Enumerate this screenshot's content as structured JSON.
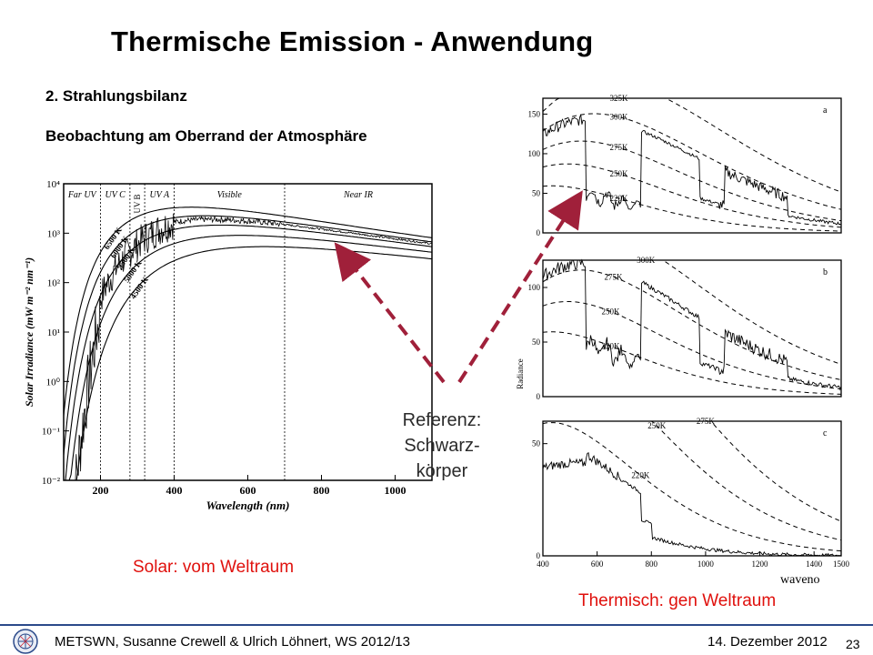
{
  "slide": {
    "title": "Thermische Emission - Anwendung",
    "section": "2. Strahlungsbilanz",
    "subtitle": "Beobachtung am Oberrand der Atmosphäre",
    "solar_caption": "Solar: vom Weltraum",
    "thermal_caption": "Thermisch: gen Weltraum",
    "reference_lines": [
      "Referenz:",
      "Schwarz-",
      "körper"
    ],
    "waveno_label": "waveno",
    "arrow_color": "#a0203a",
    "caption_color": "#e0110d"
  },
  "footer": {
    "text": "METSWN, Susanne Crewell & Ulrich Löhnert,  WS 2012/13",
    "date": "14. Dezember  2012",
    "page": "23"
  },
  "chart_data": [
    {
      "type": "line",
      "xlabel": "Wavelength (nm)",
      "ylabel": "Solar Irradiance (mW m⁻² nm⁻¹)",
      "xticks": [
        "200",
        "400",
        "600",
        "800",
        "1000"
      ],
      "yticks": [
        "10⁻²",
        "10⁻¹",
        "10⁰",
        "10¹",
        "10²",
        "10³",
        "10⁴"
      ],
      "xlim": [
        100,
        1100
      ],
      "ylim_log10": [
        -2,
        4
      ],
      "regions": [
        "Far UV",
        "UV C",
        "UV B",
        "UV A",
        "Visible",
        "Near IR"
      ],
      "region_bounds": [
        100,
        200,
        280,
        320,
        400,
        700,
        1100
      ],
      "series": [
        {
          "name": "6500 K",
          "temperature": 6500
        },
        {
          "name": "6000 K",
          "temperature": 6000
        },
        {
          "name": "5500 K",
          "temperature": 5500
        },
        {
          "name": "5000 K",
          "temperature": 5000
        },
        {
          "name": "4500 K",
          "temperature": 4500
        }
      ]
    },
    {
      "type": "line",
      "panel": "a",
      "ylabel": "",
      "yticks": [
        "0",
        "50",
        "100",
        "150"
      ],
      "ylim": [
        0,
        170
      ],
      "xlim": [
        400,
        1500
      ],
      "curves": [
        "325K",
        "300K",
        "275K",
        "250K",
        "220K"
      ],
      "curve_temps": [
        325,
        300,
        275,
        250,
        220
      ]
    },
    {
      "type": "line",
      "panel": "b",
      "ylabel": "Radiance",
      "yticks": [
        "0",
        "50",
        "100"
      ],
      "ylim": [
        0,
        125
      ],
      "xlim": [
        400,
        1500
      ],
      "curves": [
        "300K",
        "275K",
        "250K",
        "220K"
      ],
      "curve_temps": [
        300,
        275,
        250,
        220
      ]
    },
    {
      "type": "line",
      "panel": "c",
      "ylabel": "",
      "yticks": [
        "0",
        "50"
      ],
      "ylim": [
        0,
        60
      ],
      "xlim": [
        400,
        1500
      ],
      "xticks": [
        "400",
        "600",
        "800",
        "1000",
        "1200",
        "1400",
        "1500"
      ],
      "curves": [
        "275K",
        "250K",
        "220K"
      ],
      "curve_temps": [
        275,
        250,
        220
      ]
    }
  ]
}
